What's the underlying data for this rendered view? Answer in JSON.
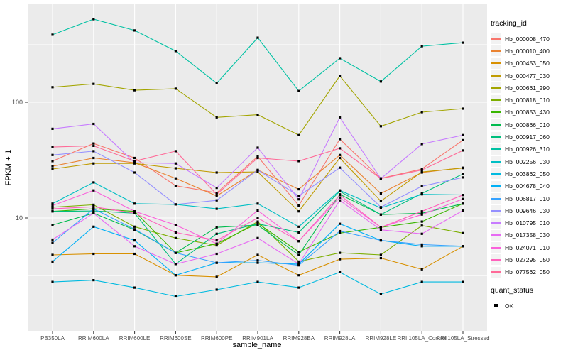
{
  "legend": {
    "tracking_title": "tracking_id",
    "quant_title": "quant_status",
    "quant_value": "OK",
    "quant_marker": "black-square"
  },
  "colors": {
    "panel_background": "#EBEBEB",
    "grid_major": "#FFFFFF",
    "grid_minor": "#FFFFFF",
    "tick_mark": "#333333",
    "tick_text": "#4D4D4D",
    "point": "#000000",
    "legend_key_background": "#F2F2F2"
  },
  "chart_data": {
    "type": "line",
    "title": "",
    "xlabel": "sample_name",
    "ylabel": "FPKM + 1",
    "y_scale": "log10",
    "y_ticks": [
      100,
      10
    ],
    "y_minor_ticks": [
      316.23,
      31.62,
      3.16
    ],
    "ylim": [
      1.05,
      700
    ],
    "grid": true,
    "legend_position": "right",
    "point_marker": "filled-black-square",
    "categories": [
      "PB350LA",
      "RRIM600LA",
      "RRIM600LE",
      "RRIM600SE",
      "RRIM600PE",
      "RRIM901LA",
      "RRIM928BA",
      "RRIM928LA",
      "RRIM928LE",
      "RRII105LA_Control",
      "RRII105LA_Stressed"
    ],
    "series": [
      {
        "name": "Hb_000008_470",
        "color": "#F8766D",
        "values": [
          31,
          44,
          33,
          19,
          16.5,
          34,
          12.8,
          48,
          22,
          26.5,
          47
        ]
      },
      {
        "name": "Hb_000010_400",
        "color": "#EA8331",
        "values": [
          28,
          33,
          30,
          22,
          15.5,
          26,
          17.7,
          35,
          16.3,
          24.7,
          27.2
        ]
      },
      {
        "name": "Hb_000453_050",
        "color": "#D89000",
        "values": [
          4.8,
          4.9,
          4.9,
          3.2,
          3.1,
          4.8,
          3.2,
          4.4,
          4.5,
          3.6,
          5.7
        ]
      },
      {
        "name": "Hb_000477_030",
        "color": "#C09B00",
        "values": [
          26.5,
          29.6,
          29.6,
          26.9,
          24.7,
          25,
          11.4,
          33,
          14,
          25,
          27
        ]
      },
      {
        "name": "Hb_000661_290",
        "color": "#A3A500",
        "values": [
          135,
          144,
          127,
          131,
          74,
          78,
          52,
          169,
          62,
          82,
          88
        ]
      },
      {
        "name": "Hb_000818_010",
        "color": "#7CAE00",
        "values": [
          12.4,
          13,
          8.4,
          6.7,
          5.8,
          9.3,
          4.2,
          5,
          4.8,
          8.6,
          7.4
        ]
      },
      {
        "name": "Hb_000853_430",
        "color": "#39B600",
        "values": [
          11.4,
          12,
          11.4,
          5,
          6,
          9,
          5.1,
          7.4,
          8.3,
          9.3,
          13.3
        ]
      },
      {
        "name": "Hb_000866_010",
        "color": "#00BB4E",
        "values": [
          8.7,
          11,
          7.9,
          5,
          8.3,
          8.7,
          4.8,
          16,
          10.7,
          11,
          13.3
        ]
      },
      {
        "name": "Hb_000917_060",
        "color": "#00BF7D",
        "values": [
          11.4,
          11.5,
          11,
          4,
          7.3,
          8.9,
          7.5,
          17,
          10.7,
          16.3,
          24
        ]
      },
      {
        "name": "Hb_000926_310",
        "color": "#00C1A3",
        "values": [
          383,
          522,
          417,
          277,
          146,
          361,
          125,
          240,
          151,
          305,
          327
        ]
      },
      {
        "name": "Hb_002256_030",
        "color": "#00BFC4",
        "values": [
          13.3,
          20.3,
          13.3,
          13.1,
          12,
          13.3,
          8.4,
          17.3,
          12.2,
          16,
          15.8
        ]
      },
      {
        "name": "Hb_003862_050",
        "color": "#00BAE0",
        "values": [
          2.8,
          2.9,
          2.5,
          2.1,
          2.4,
          2.8,
          2.5,
          3.4,
          2.2,
          2.8,
          2.8
        ]
      },
      {
        "name": "Hb_004678_040",
        "color": "#00B0F6",
        "values": [
          4.2,
          8.4,
          6.4,
          3.2,
          4.1,
          4.1,
          4,
          8.9,
          6.4,
          5.7,
          5.7
        ]
      },
      {
        "name": "Hb_006817_010",
        "color": "#35A2FF",
        "values": [
          6.1,
          12,
          8,
          5,
          4.1,
          4.3,
          3.9,
          7.7,
          6.4,
          5.9,
          5.7
        ]
      },
      {
        "name": "Hb_009646_030",
        "color": "#9590FF",
        "values": [
          35,
          37.8,
          24.7,
          13.1,
          14.2,
          26,
          15.5,
          27.2,
          12.4,
          18.8,
          22.4
        ]
      },
      {
        "name": "Hb_010795_010",
        "color": "#C77CFF",
        "values": [
          59,
          65,
          30,
          29.6,
          18.2,
          40.5,
          14.5,
          74,
          21.9,
          43.5,
          52
        ]
      },
      {
        "name": "Hb_017358_030",
        "color": "#E76BF3",
        "values": [
          6.5,
          11,
          5.7,
          4,
          4.9,
          6.7,
          4,
          14.2,
          7.9,
          7.3,
          11.6
        ]
      },
      {
        "name": "Hb_024071_010",
        "color": "#FA62DB",
        "values": [
          12.8,
          17.3,
          11.4,
          8.7,
          6,
          11.6,
          6.3,
          15,
          8.3,
          10.7,
          14.6
        ]
      },
      {
        "name": "Hb_027295_050",
        "color": "#FF62BC",
        "values": [
          12,
          12.5,
          11,
          7.5,
          6.4,
          10,
          6.3,
          15.8,
          8.3,
          11.4,
          15.8
        ]
      },
      {
        "name": "Hb_077562_050",
        "color": "#FF6A98",
        "values": [
          41,
          42,
          31,
          37.8,
          16,
          33,
          31,
          40,
          21.9,
          26,
          38.3
        ]
      }
    ]
  }
}
